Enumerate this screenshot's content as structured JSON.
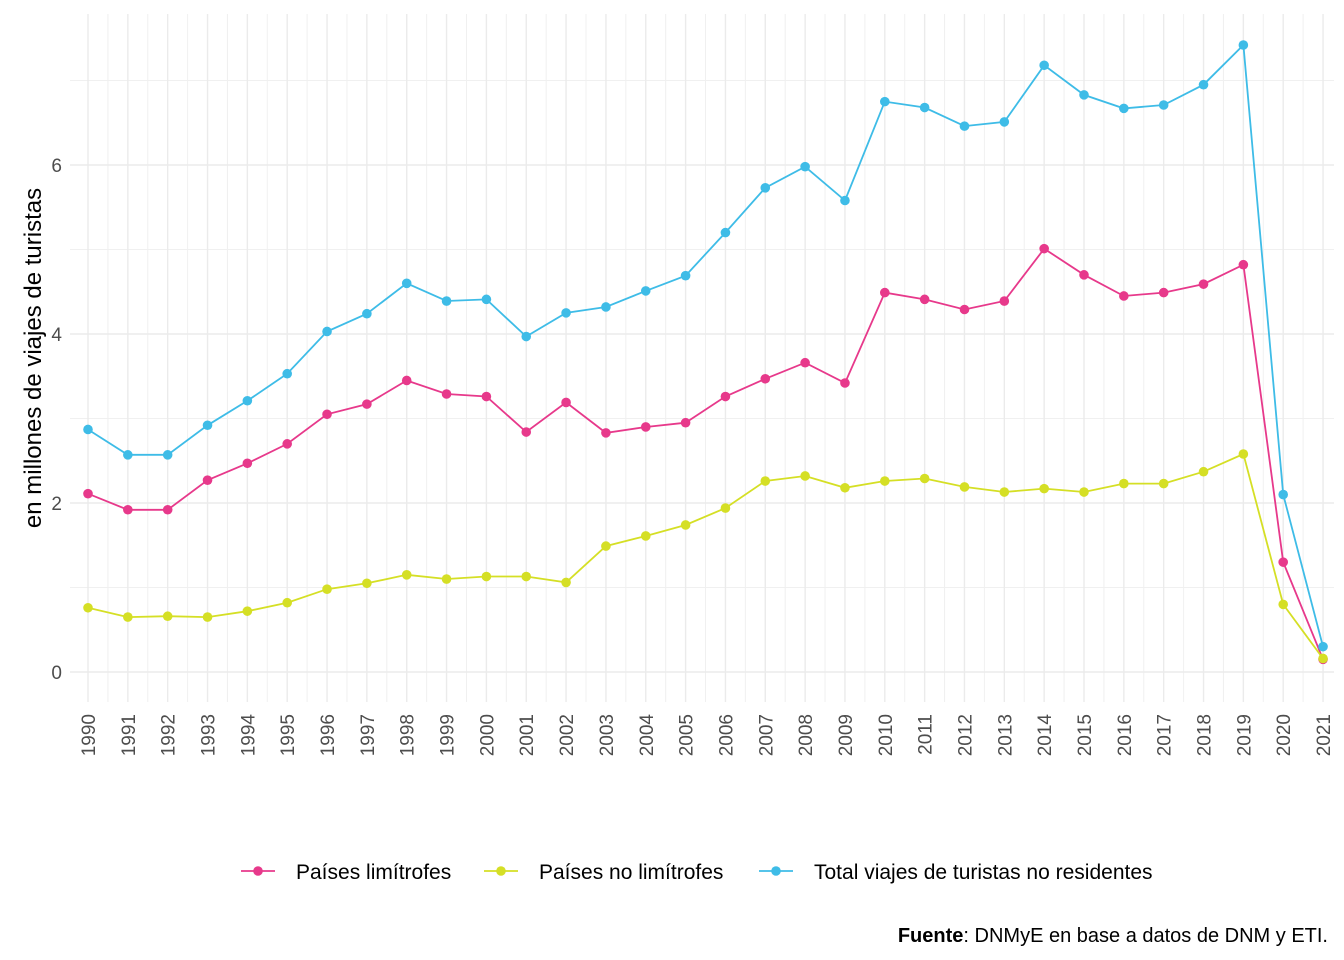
{
  "chart_data": {
    "type": "line",
    "title": "",
    "xlabel": "",
    "ylabel": "en millones de viajes de turistas",
    "x": [
      "1990",
      "1991",
      "1992",
      "1993",
      "1994",
      "1995",
      "1996",
      "1997",
      "1998",
      "1999",
      "2000",
      "2001",
      "2002",
      "2003",
      "2004",
      "2005",
      "2006",
      "2007",
      "2008",
      "2009",
      "2010",
      "2011",
      "2012",
      "2013",
      "2014",
      "2015",
      "2016",
      "2017",
      "2018",
      "2019",
      "2020",
      "2021"
    ],
    "ylim": [
      -0.3,
      7.7
    ],
    "yticks": [
      "0",
      "2",
      "4",
      "6"
    ],
    "grid": true,
    "legend_position": "bottom",
    "series": [
      {
        "name": "Países limítrofes",
        "color": "#e7398b",
        "values": [
          2.11,
          1.92,
          1.92,
          2.27,
          2.47,
          2.7,
          3.05,
          3.17,
          3.45,
          3.29,
          3.26,
          2.84,
          3.19,
          2.83,
          2.9,
          2.95,
          3.26,
          3.47,
          3.66,
          3.42,
          4.49,
          4.41,
          4.29,
          4.39,
          5.01,
          4.7,
          4.45,
          4.49,
          4.59,
          4.82,
          1.3,
          0.15
        ]
      },
      {
        "name": "Países no limítrofes",
        "color": "#d5df25",
        "values": [
          0.76,
          0.65,
          0.66,
          0.65,
          0.72,
          0.82,
          0.98,
          1.05,
          1.15,
          1.1,
          1.13,
          1.13,
          1.06,
          1.49,
          1.61,
          1.74,
          1.94,
          2.26,
          2.32,
          2.18,
          2.26,
          2.29,
          2.19,
          2.13,
          2.17,
          2.13,
          2.23,
          2.23,
          2.37,
          2.58,
          0.8,
          0.16
        ]
      },
      {
        "name": "Total viajes de turistas no residentes",
        "color": "#3ebce7",
        "values": [
          2.87,
          2.57,
          2.57,
          2.92,
          3.21,
          3.53,
          4.03,
          4.24,
          4.6,
          4.39,
          4.41,
          3.97,
          4.25,
          4.32,
          4.51,
          4.69,
          5.2,
          5.73,
          5.98,
          5.58,
          6.75,
          6.68,
          6.46,
          6.51,
          7.18,
          6.83,
          6.67,
          6.71,
          6.95,
          7.42,
          2.1,
          0.3
        ]
      }
    ]
  },
  "caption": {
    "bold": "Fuente",
    "rest": ": DNMyE en base a datos de DNM y ETI."
  }
}
